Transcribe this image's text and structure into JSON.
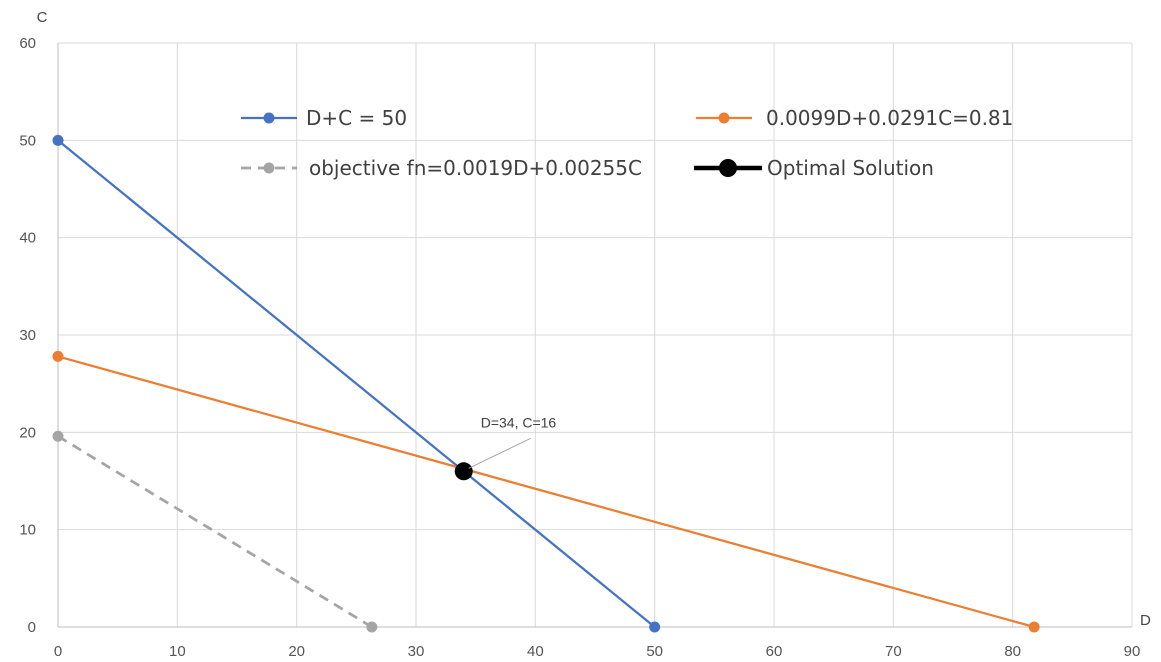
{
  "chart_data": {
    "type": "scatter",
    "xlabel": "D",
    "ylabel": "C",
    "xlim": [
      0,
      90
    ],
    "ylim": [
      0,
      60
    ],
    "x_ticks": [
      0,
      10,
      20,
      30,
      40,
      50,
      60,
      70,
      80,
      90
    ],
    "y_ticks": [
      0,
      10,
      20,
      30,
      40,
      50,
      60
    ],
    "grid": true,
    "legend_position": "top",
    "series": [
      {
        "name": "D+C = 50",
        "color": "#4472C4",
        "style": "solid",
        "marker": "circle",
        "x": [
          0,
          50
        ],
        "y": [
          50,
          0
        ]
      },
      {
        "name": "0.0099D+0.0291C=0.81",
        "color": "#ED7D31",
        "style": "solid",
        "marker": "circle",
        "x": [
          0,
          81.8
        ],
        "y": [
          27.8,
          0
        ]
      },
      {
        "name": "objective fn=0.0019D+0.00255C",
        "color": "#A5A5A5",
        "style": "dashed",
        "marker": "circle",
        "x": [
          0,
          26.3
        ],
        "y": [
          19.6,
          0
        ]
      },
      {
        "name": "Optimal Solution",
        "color": "#000000",
        "style": "solid",
        "marker": "circle-large",
        "x": [
          34
        ],
        "y": [
          16
        ]
      }
    ],
    "annotations": [
      {
        "text": "D=34, C=16",
        "x": 34,
        "y": 16
      }
    ]
  }
}
